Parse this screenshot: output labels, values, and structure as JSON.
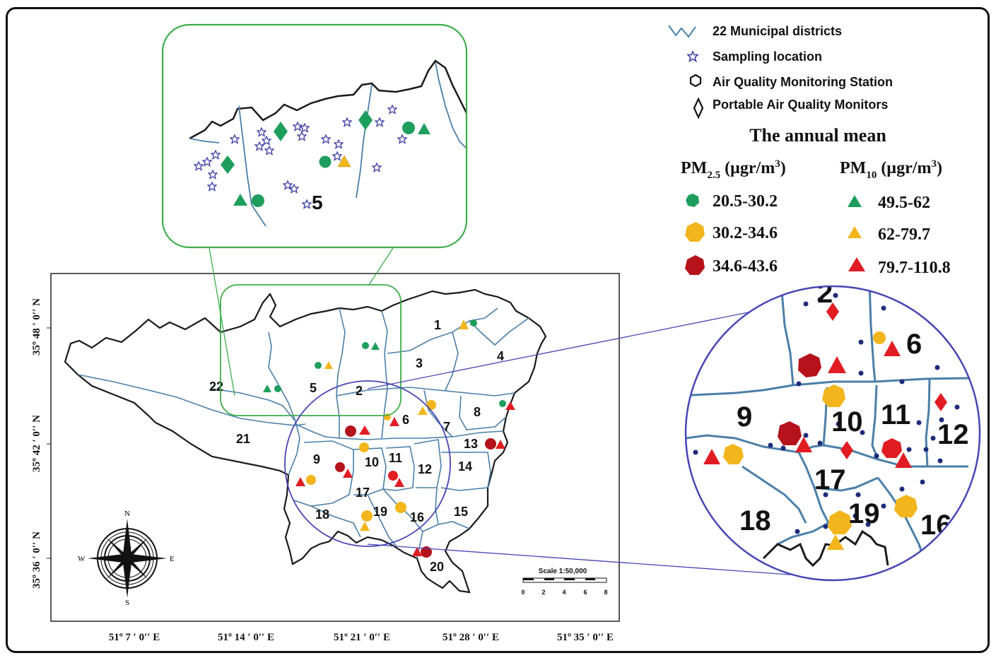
{
  "legend": {
    "items": [
      {
        "label": "22 Municipal districts",
        "icon": "district-line-icon"
      },
      {
        "label": "Sampling location",
        "icon": "star-icon"
      },
      {
        "label": "Air Quality Monitoring Station",
        "icon": "hexagon-icon"
      },
      {
        "label": "Portable Air Quality Monitors",
        "icon": "diamond-icon"
      }
    ],
    "subtitle": "The annual mean",
    "pm25_header": "PM",
    "pm25_sub": "2.5",
    "pm25_unit": " (µgr/m",
    "pm10_header": "PM",
    "pm10_sub": "10",
    "pm10_unit": " (µgr/m",
    "unit_sup": "3",
    "unit_close": ")",
    "pm25_classes": [
      {
        "range": "20.5-30.2",
        "color": "#1e9e5c"
      },
      {
        "range": "30.2-34.6",
        "color": "#f2b51c"
      },
      {
        "range": "34.6-43.6",
        "color": "#b5121b"
      }
    ],
    "pm10_classes": [
      {
        "range": "49.5-62",
        "color": "#1e9e5c"
      },
      {
        "range": "62-79.7",
        "color": "#f2b51c"
      },
      {
        "range": "79.7-110.8",
        "color": "#e11d24"
      }
    ]
  },
  "axes": {
    "lat_labels": [
      "35º 48 ′ 0′′ N",
      "35º 42 ′ 0′′ N",
      "35º 36 ′ 0′′ N"
    ],
    "lon_labels": [
      "51º 7 ′ 0′′ E",
      "51º 14 ′ 0′′ E",
      "51º 21 ′ 0′′ E",
      "51º 28 ′ 0′′ E",
      "51º 35 ′ 0′′ E"
    ]
  },
  "scale": {
    "title": "Scale 1:50,000",
    "ticks": [
      "0",
      "2",
      "4",
      "6",
      "8"
    ]
  },
  "compass": {
    "n": "N",
    "s": "S",
    "e": "E",
    "w": "W"
  },
  "districts": [
    "1",
    "2",
    "3",
    "4",
    "5",
    "6",
    "7",
    "8",
    "9",
    "10",
    "11",
    "12",
    "13",
    "14",
    "15",
    "16",
    "17",
    "18",
    "19",
    "20",
    "21",
    "22"
  ],
  "inset_right_districts": [
    "2",
    "6",
    "9",
    "10",
    "11",
    "12",
    "17",
    "18",
    "19",
    "16"
  ],
  "inset_top_district": "5",
  "colors": {
    "green": "#1e9e5c",
    "yellow": "#f2b51c",
    "darkred": "#b5121b",
    "red": "#e11d24",
    "river": "#4a7fa8",
    "inset_circle": "#4646b4",
    "inset_box": "#3cad4a",
    "star_blue": "#3a3aa6"
  }
}
